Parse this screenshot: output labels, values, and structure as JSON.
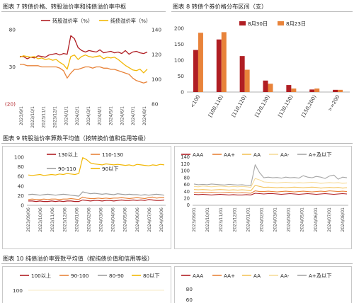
{
  "charts": {
    "fig7": {
      "caption": "图表 7  转债价格、转股溢价率和纯债溢价率中枢",
      "legend": [
        {
          "name": "转股溢价率（%）",
          "color": "#b01e23"
        },
        {
          "name": "纯债溢价率（%）",
          "color": "#f2b705"
        }
      ],
      "left_ticks": [
        "80",
        "30",
        "(20)"
      ],
      "right_ticks": [
        "140",
        "120",
        "100",
        "80"
      ],
      "x_labels": [
        "2023/9/1",
        "2023/10/1",
        "2023/11/1",
        "2023/12/1",
        "2024/1/1",
        "2024/2/1",
        "2024/3/1",
        "2024/4/1",
        "2024/5/1",
        "2024/6/1",
        "2024/7/1",
        "2024/8/1"
      ]
    },
    "fig8": {
      "caption": "图表 8  转债个券价格分布区间（支）",
      "legend": [
        {
          "name": "8月30日",
          "color": "#b01e23"
        },
        {
          "name": "8月23日",
          "color": "#e8833a"
        }
      ],
      "y_ticks": [
        "200",
        "150",
        "100",
        "50",
        "0"
      ],
      "categories": [
        "<100",
        "[100,110)",
        "[110,120)",
        "[120,130)",
        "[130,150)",
        "[150,200)",
        ">=200"
      ]
    },
    "fig9": {
      "caption": "图表 9  转股溢价率算数平均值（按转换价值和信用等级）",
      "left": {
        "legend": [
          {
            "name": "130以上",
            "color": "#b01e23"
          },
          {
            "name": "110-130",
            "color": "#e8833a"
          },
          {
            "name": "90-110",
            "color": "#9e9e9e"
          },
          {
            "name": "90以下",
            "color": "#f2b705"
          }
        ],
        "y_ticks": [
          "100",
          "80",
          "60",
          "40",
          "20",
          "0"
        ],
        "x_labels": [
          "2023/09/06",
          "2023/10/06",
          "2023/11/06",
          "2023/12/06",
          "2024/01/06",
          "2024/02/06",
          "2024/03/06",
          "2024/04/06",
          "2024/05/06",
          "2024/06/06",
          "2024/07/06",
          "2024/08/06"
        ]
      },
      "right": {
        "legend": [
          {
            "name": "AAA",
            "color": "#b01e23"
          },
          {
            "name": "AA+",
            "color": "#e8833a"
          },
          {
            "name": "AA",
            "color": "#f3c35b"
          },
          {
            "name": "AA-",
            "color": "#f7dc9a"
          },
          {
            "name": "A+及以下",
            "color": "#a6a6a6"
          }
        ],
        "y_ticks": [
          "140",
          "120",
          "100",
          "80",
          "60",
          "40",
          "20",
          "0"
        ],
        "x_labels": [
          "2023/09/01",
          "2023/10/01",
          "2023/11/01",
          "2023/12/01",
          "2024/01/01",
          "2024/02/01",
          "2024/03/01",
          "2024/04/01",
          "2024/05/01",
          "2024/06/01",
          "2024/07/01",
          "2024/08/01"
        ]
      }
    },
    "fig10": {
      "caption": "图表 10  纯债溢价率算数平均值（按纯债价值和信用等级）",
      "left": {
        "legend": [
          {
            "name": "100以上",
            "color": "#b01e23"
          },
          {
            "name": "90-100",
            "color": "#e8833a"
          },
          {
            "name": "80-90",
            "color": "#9e9e9e"
          },
          {
            "name": "80以下",
            "color": "#f2b705"
          }
        ],
        "y_ticks": [
          "100"
        ]
      },
      "right": {
        "legend": [
          {
            "name": "AAA",
            "color": "#b01e23"
          },
          {
            "name": "AA+",
            "color": "#e8833a"
          },
          {
            "name": "AA",
            "color": "#f3c35b"
          },
          {
            "name": "AA-",
            "color": "#f7dc9a"
          },
          {
            "name": "A+及以下",
            "color": "#a6a6a6"
          }
        ],
        "y_ticks": [
          "80",
          "60"
        ]
      }
    }
  },
  "chart_data": [
    {
      "type": "line",
      "title": "图表 7  转债价格、转股溢价率和纯债溢价率中枢",
      "x_range": [
        "2023/9/1",
        "2024/8/31"
      ],
      "ylim_left": [
        -20,
        80
      ],
      "ylim_right": [
        80,
        140
      ],
      "series": [
        {
          "name": "转股溢价率（%）",
          "axis": "left",
          "color": "#b01e23",
          "values": [
            44,
            44,
            41,
            43,
            42,
            45,
            44,
            43,
            46,
            47,
            48,
            46,
            48,
            47,
            72,
            68,
            56,
            52,
            50,
            52,
            51,
            50,
            53,
            49,
            50,
            51,
            49,
            50,
            48,
            52,
            47,
            50,
            51,
            49,
            48,
            50
          ]
        },
        {
          "name": "纯债溢价率（%）",
          "axis": "left",
          "color": "#f2b705",
          "values": [
            43,
            45,
            44,
            43,
            44,
            41,
            42,
            40,
            41,
            39,
            40,
            36,
            33,
            27,
            44,
            46,
            40,
            44,
            46,
            44,
            43,
            44,
            45,
            41,
            43,
            42,
            43,
            40,
            36,
            32,
            29,
            26,
            25,
            27,
            22,
            27
          ]
        },
        {
          "name": "",
          "axis": "right",
          "color": "#e8833a",
          "values": [
            112,
            112,
            111,
            111,
            111,
            111,
            110,
            110,
            110,
            110,
            110,
            109,
            107,
            101,
            105,
            108,
            108,
            109,
            110,
            110,
            109,
            110,
            110,
            109,
            109,
            108,
            108,
            107,
            106,
            105,
            104,
            101,
            99,
            98,
            97,
            98
          ]
        }
      ]
    },
    {
      "type": "bar",
      "title": "图表 8  转债个券价格分布区间（支）",
      "categories": [
        "<100",
        "[100,110)",
        "[110,120)",
        "[120,130)",
        "[130,150)",
        "[150,200)",
        ">=200"
      ],
      "ylim": [
        0,
        200
      ],
      "series": [
        {
          "name": "8月30日",
          "color": "#b01e23",
          "values": [
            132,
            165,
            113,
            36,
            22,
            8,
            7
          ]
        },
        {
          "name": "8月23日",
          "color": "#e8833a",
          "values": [
            186,
            188,
            70,
            26,
            11,
            11,
            7
          ]
        }
      ]
    },
    {
      "type": "line",
      "title": "图表 9  转股溢价率算数平均值（按转换价值和信用等级）",
      "x_range": [
        "2023/09/06",
        "2024/08/30"
      ],
      "ylim": [
        0,
        100
      ],
      "series": [
        {
          "name": "130以上",
          "color": "#b01e23",
          "values": [
            9,
            9,
            8,
            9,
            8,
            8,
            9,
            8,
            9,
            8,
            9,
            9,
            8,
            8,
            11,
            10,
            9,
            10,
            10,
            9,
            10,
            10,
            9,
            10,
            11,
            10,
            10,
            11,
            10,
            11,
            10,
            12,
            11,
            10,
            10,
            11
          ]
        },
        {
          "name": "110-130",
          "color": "#e8833a",
          "values": [
            12,
            13,
            12,
            12,
            13,
            12,
            13,
            13,
            12,
            13,
            13,
            14,
            13,
            12,
            17,
            15,
            14,
            14,
            15,
            14,
            15,
            14,
            15,
            15,
            16,
            15,
            14,
            15,
            16,
            15,
            14,
            16,
            17,
            15,
            16,
            16
          ]
        },
        {
          "name": "90-110",
          "color": "#9e9e9e",
          "values": [
            22,
            23,
            22,
            21,
            22,
            23,
            22,
            21,
            22,
            23,
            22,
            21,
            20,
            19,
            28,
            26,
            24,
            25,
            24,
            23,
            24,
            23,
            22,
            24,
            23,
            22,
            23,
            22,
            22,
            21,
            22,
            21,
            22,
            23,
            22,
            21
          ]
        },
        {
          "name": "90以下",
          "color": "#f2b705",
          "values": [
            63,
            62,
            63,
            64,
            62,
            63,
            64,
            63,
            65,
            64,
            66,
            65,
            64,
            66,
            99,
            95,
            88,
            86,
            85,
            84,
            86,
            85,
            84,
            85,
            84,
            83,
            84,
            82,
            85,
            84,
            83,
            82,
            84,
            83,
            85,
            84
          ]
        }
      ]
    },
    {
      "type": "line",
      "title": "",
      "x_range": [
        "2023/09/01",
        "2024/08/30"
      ],
      "ylim": [
        0,
        140
      ],
      "series": [
        {
          "name": "AAA",
          "color": "#b01e23",
          "values": [
            32,
            31,
            32,
            31,
            30,
            31,
            32,
            31,
            30,
            31,
            30,
            30,
            31,
            30,
            35,
            34,
            33,
            34,
            34,
            33,
            32,
            33,
            34,
            33,
            32,
            33,
            34,
            33,
            32,
            33,
            34,
            33,
            32,
            33,
            34,
            33
          ]
        },
        {
          "name": "AA+",
          "color": "#e8833a",
          "values": [
            38,
            37,
            38,
            37,
            38,
            37,
            36,
            37,
            38,
            37,
            36,
            37,
            36,
            35,
            42,
            40,
            40,
            41,
            40,
            39,
            40,
            41,
            40,
            39,
            40,
            41,
            40,
            39,
            40,
            41,
            40,
            42,
            41,
            40,
            41,
            40
          ]
        },
        {
          "name": "AA",
          "color": "#f3c35b",
          "values": [
            46,
            45,
            46,
            45,
            44,
            45,
            46,
            45,
            44,
            45,
            44,
            45,
            44,
            42,
            58,
            55,
            52,
            53,
            52,
            51,
            52,
            51,
            52,
            53,
            52,
            51,
            52,
            53,
            52,
            50,
            51,
            52,
            51,
            52,
            50,
            51
          ]
        },
        {
          "name": "AA-",
          "color": "#f7dc9a",
          "values": [
            55,
            54,
            56,
            55,
            54,
            55,
            56,
            55,
            54,
            55,
            54,
            55,
            54,
            52,
            78,
            74,
            68,
            67,
            66,
            65,
            66,
            67,
            66,
            65,
            66,
            65,
            66,
            67,
            66,
            64,
            65,
            66,
            65,
            66,
            64,
            65
          ]
        },
        {
          "name": "A+及以下",
          "color": "#a6a6a6",
          "values": [
            62,
            60,
            61,
            60,
            62,
            61,
            60,
            59,
            61,
            60,
            59,
            60,
            58,
            57,
            118,
            95,
            80,
            82,
            80,
            81,
            79,
            82,
            80,
            81,
            79,
            86,
            82,
            80,
            84,
            82,
            78,
            85,
            88,
            76,
            82,
            80
          ]
        }
      ]
    },
    {
      "type": "line",
      "title": "图表 10  纯债溢价率算数平均值（按纯债价值和信用等级）",
      "series": [
        {
          "name": "100以上",
          "color": "#b01e23",
          "values": []
        },
        {
          "name": "90-100",
          "color": "#e8833a",
          "values": []
        },
        {
          "name": "80-90",
          "color": "#9e9e9e",
          "values": []
        },
        {
          "name": "80以下",
          "color": "#f2b705",
          "values": []
        }
      ]
    },
    {
      "type": "line",
      "title": "",
      "series": [
        {
          "name": "AAA",
          "color": "#b01e23",
          "values": []
        },
        {
          "name": "AA+",
          "color": "#e8833a",
          "values": []
        },
        {
          "name": "AA",
          "color": "#f3c35b",
          "values": []
        },
        {
          "name": "AA-",
          "color": "#f7dc9a",
          "values": []
        },
        {
          "name": "A+及以下",
          "color": "#a6a6a6",
          "values": []
        }
      ]
    }
  ]
}
